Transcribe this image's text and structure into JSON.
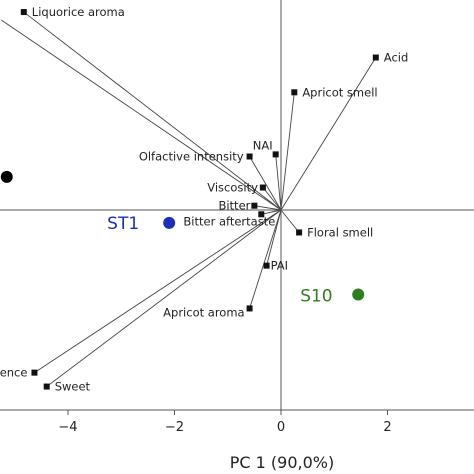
{
  "chart_data": {
    "type": "scatter",
    "title": "",
    "xlabel": "PC 1 (90,0%)",
    "ylabel": "",
    "xlim": [
      -5.25,
      3.5
    ],
    "ylim": [
      -3.7,
      3.8
    ],
    "xticks": [
      -4,
      -2,
      0,
      2
    ],
    "grid": false,
    "loadings": [
      {
        "name": "Liquorice aroma",
        "x": -4.83,
        "y": 3.7
      },
      {
        "name": "Acid",
        "x": 1.78,
        "y": 2.85
      },
      {
        "name": "Apricot smell",
        "x": 0.25,
        "y": 2.2
      },
      {
        "name": "NAI",
        "x": -0.1,
        "y": 1.04
      },
      {
        "name": "Olfactive intensity",
        "x": -0.59,
        "y": 1.0
      },
      {
        "name": "Viscosity",
        "x": -0.34,
        "y": 0.42
      },
      {
        "name": "Bitter",
        "x": -0.5,
        "y": 0.08
      },
      {
        "name": "Bitter aftertaste",
        "x": -0.37,
        "y": -0.08
      },
      {
        "name": "Floral smell",
        "x": 0.34,
        "y": -0.42
      },
      {
        "name": "PAI",
        "x": -0.27,
        "y": -1.04
      },
      {
        "name": "Apricot aroma",
        "x": -0.59,
        "y": -1.84
      },
      {
        "name": "ence",
        "x": -4.63,
        "y": -3.04
      },
      {
        "name": "Sweet",
        "x": -4.4,
        "y": -3.3
      }
    ],
    "hidden_loading_lines": [
      {
        "x": -5.25,
        "y": 3.55
      }
    ],
    "samples": [
      {
        "name": "ST1",
        "x": -2.1,
        "y": -0.24,
        "color": "#1b2fb8"
      },
      {
        "name": "S10",
        "x": 1.45,
        "y": -1.58,
        "color": "#2e7d1e"
      },
      {
        "name": "",
        "x": -5.15,
        "y": 0.62,
        "color": "#000000"
      }
    ]
  }
}
